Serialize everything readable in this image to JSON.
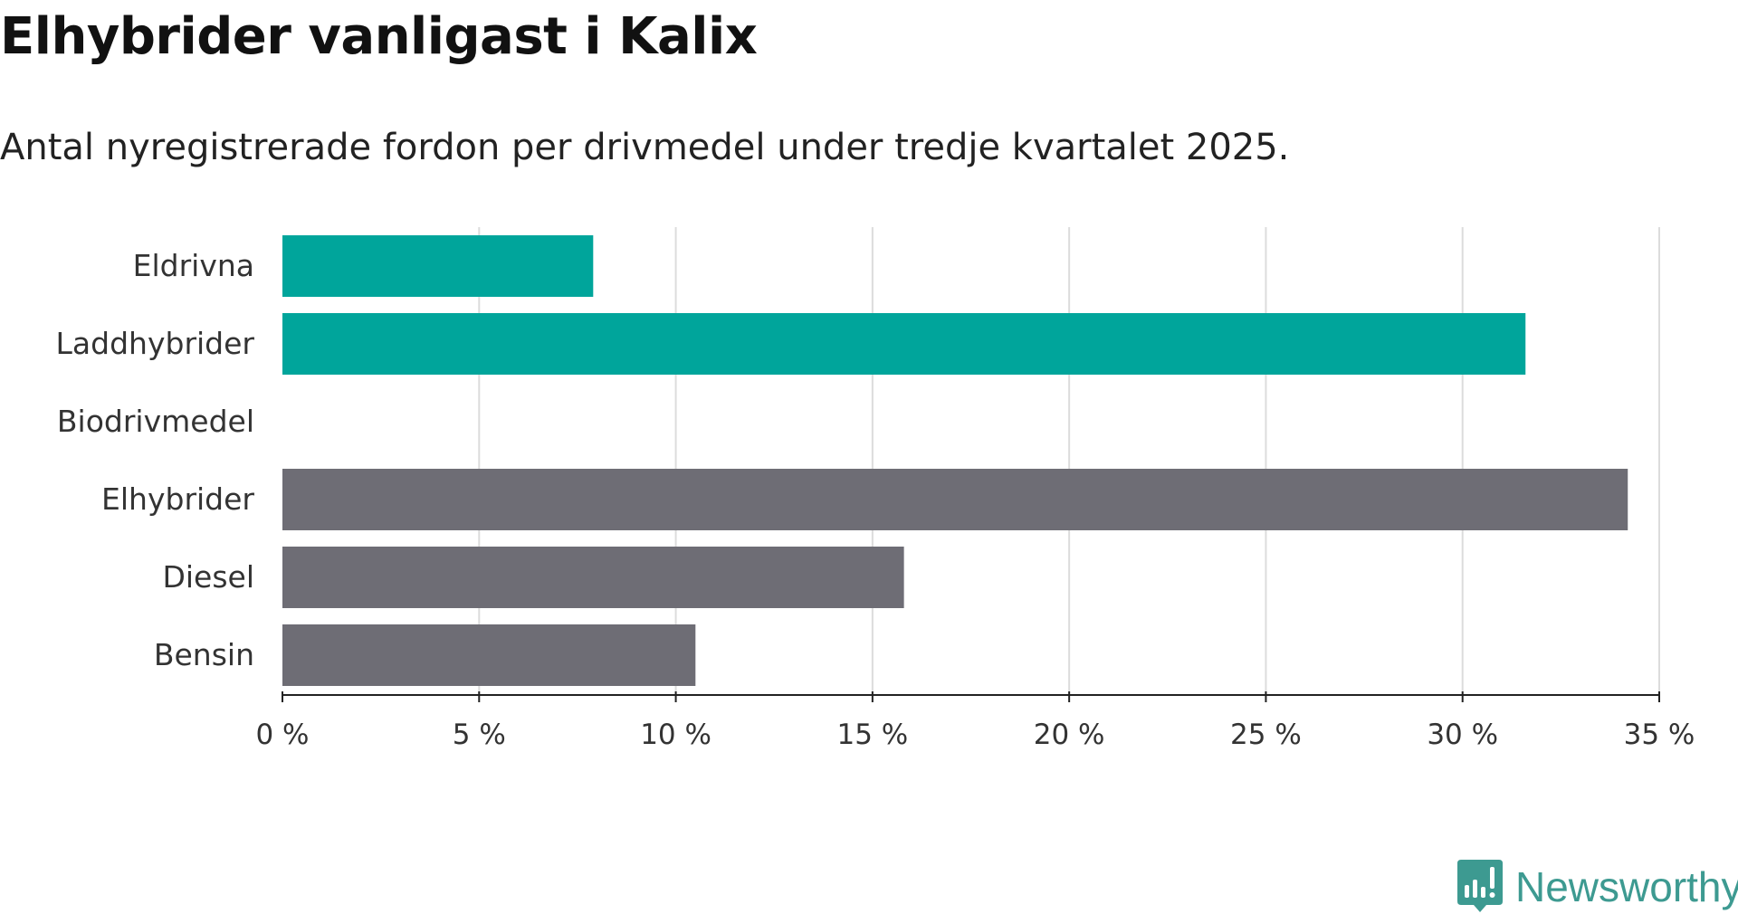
{
  "chart_data": {
    "type": "bar",
    "orientation": "horizontal",
    "title": "Elhybrider vanligast i Kalix",
    "subtitle": "Antal nyregistrerade fordon per drivmedel under tredje kvartalet 2025.",
    "categories": [
      "Eldrivna",
      "Laddhybrider",
      "Biodrivmedel",
      "Elhybrider",
      "Diesel",
      "Bensin"
    ],
    "values": [
      7.9,
      31.6,
      0,
      34.2,
      15.8,
      10.5
    ],
    "bar_colors": [
      "#00a59b",
      "#00a59b",
      "#00a59b",
      "#6e6d75",
      "#6e6d75",
      "#6e6d75"
    ],
    "xlim": [
      0,
      35
    ],
    "xticks": [
      0,
      5,
      10,
      15,
      20,
      25,
      30,
      35
    ],
    "xtick_labels": [
      "0 %",
      "5 %",
      "10 %",
      "15 %",
      "20 %",
      "25 %",
      "30 %",
      "35 %"
    ],
    "grid": true,
    "xlabel": "",
    "ylabel": ""
  },
  "brand": {
    "name": "Newsworthy",
    "color": "#3d9a91"
  }
}
